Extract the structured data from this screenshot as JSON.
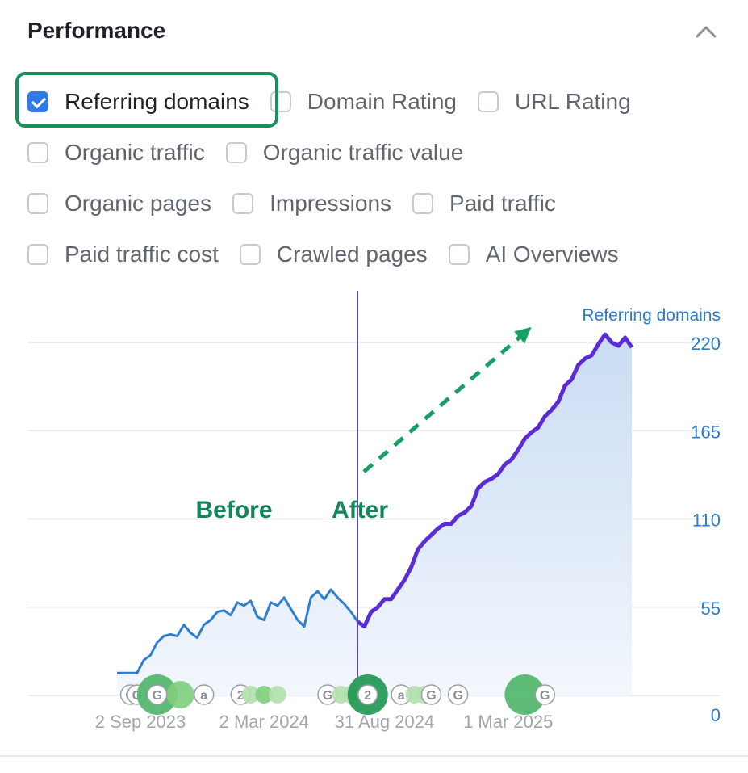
{
  "panel": {
    "title": "Performance"
  },
  "metrics": {
    "rows": [
      [
        {
          "label": "Referring domains",
          "checked": true
        },
        {
          "label": "Domain Rating",
          "checked": false
        },
        {
          "label": "URL Rating",
          "checked": false
        }
      ],
      [
        {
          "label": "Organic traffic",
          "checked": false
        },
        {
          "label": "Organic traffic value",
          "checked": false
        }
      ],
      [
        {
          "label": "Organic pages",
          "checked": false
        },
        {
          "label": "Impressions",
          "checked": false
        },
        {
          "label": "Paid traffic",
          "checked": false
        }
      ],
      [
        {
          "label": "Paid traffic cost",
          "checked": false
        },
        {
          "label": "Crawled pages",
          "checked": false
        },
        {
          "label": "AI Overviews",
          "checked": false
        }
      ]
    ]
  },
  "chart_data": {
    "type": "area",
    "series": [
      {
        "name": "Referring domains",
        "before": [
          [
            0,
            14
          ],
          [
            2,
            14
          ],
          [
            4,
            14
          ],
          [
            6,
            14
          ],
          [
            8,
            22
          ],
          [
            10,
            25
          ],
          [
            12,
            33
          ],
          [
            14,
            37
          ],
          [
            16,
            38
          ],
          [
            18,
            37
          ],
          [
            20,
            44
          ],
          [
            22,
            39
          ],
          [
            24,
            36
          ],
          [
            26,
            44
          ],
          [
            28,
            47
          ],
          [
            30,
            52
          ],
          [
            32,
            53
          ],
          [
            34,
            50
          ],
          [
            36,
            58
          ],
          [
            38,
            56
          ],
          [
            40,
            59
          ],
          [
            42,
            49
          ],
          [
            44,
            47
          ],
          [
            46,
            58
          ],
          [
            48,
            56
          ],
          [
            50,
            61
          ],
          [
            52,
            54
          ],
          [
            54,
            47
          ],
          [
            56,
            43
          ],
          [
            58,
            61
          ],
          [
            60,
            65
          ],
          [
            62,
            60
          ],
          [
            64,
            66
          ],
          [
            66,
            61
          ],
          [
            68,
            57
          ],
          [
            70,
            52
          ],
          [
            72,
            46
          ]
        ],
        "after": [
          [
            72,
            46
          ],
          [
            74,
            43
          ],
          [
            76,
            52
          ],
          [
            78,
            55
          ],
          [
            80,
            60
          ],
          [
            82,
            60
          ],
          [
            84,
            66
          ],
          [
            86,
            72
          ],
          [
            88,
            80
          ],
          [
            90,
            91
          ],
          [
            92,
            96
          ],
          [
            94,
            100
          ],
          [
            96,
            104
          ],
          [
            98,
            107
          ],
          [
            100,
            107
          ],
          [
            102,
            112
          ],
          [
            104,
            114
          ],
          [
            106,
            118
          ],
          [
            108,
            129
          ],
          [
            110,
            133
          ],
          [
            112,
            135
          ],
          [
            114,
            138
          ],
          [
            116,
            144
          ],
          [
            118,
            147
          ],
          [
            120,
            153
          ],
          [
            122,
            160
          ],
          [
            124,
            164
          ],
          [
            126,
            167
          ],
          [
            128,
            174
          ],
          [
            130,
            178
          ],
          [
            132,
            183
          ],
          [
            134,
            193
          ],
          [
            136,
            197
          ],
          [
            138,
            206
          ],
          [
            140,
            210
          ],
          [
            142,
            212
          ],
          [
            144,
            219
          ],
          [
            146,
            225
          ],
          [
            148,
            220
          ],
          [
            150,
            218
          ],
          [
            152,
            223
          ],
          [
            154,
            217
          ]
        ]
      }
    ],
    "x_ticks": [
      {
        "x": 7,
        "label": "2 Sep 2023"
      },
      {
        "x": 44,
        "label": "2 Mar 2024"
      },
      {
        "x": 80,
        "label": "31 Aug 2024"
      },
      {
        "x": 117,
        "label": "1 Mar 2025"
      }
    ],
    "ylabel": "Referring domains",
    "ylim": [
      0,
      220
    ],
    "yticks": [
      0,
      55,
      110,
      165,
      220
    ],
    "divider_x": 72,
    "annotations": {
      "before": "Before",
      "after": "After"
    },
    "events": [
      {
        "x": 4,
        "kind": "g",
        "text": "G"
      },
      {
        "x": 6,
        "kind": "g",
        "text": "G"
      },
      {
        "x": 12,
        "kind": "dot",
        "size": "large",
        "tone": "mid"
      },
      {
        "x": 12,
        "kind": "g",
        "text": "G"
      },
      {
        "x": 19,
        "kind": "dot",
        "size": "medium",
        "tone": "light"
      },
      {
        "x": 26,
        "kind": "a",
        "text": "a"
      },
      {
        "x": 37,
        "kind": "n",
        "text": "2"
      },
      {
        "x": 40,
        "kind": "dot",
        "size": "small",
        "tone": "pale"
      },
      {
        "x": 44,
        "kind": "dot",
        "size": "small",
        "tone": "light"
      },
      {
        "x": 48,
        "kind": "dot",
        "size": "small",
        "tone": "pale"
      },
      {
        "x": 63,
        "kind": "g",
        "text": "G"
      },
      {
        "x": 67,
        "kind": "dot",
        "size": "small",
        "tone": "pale"
      },
      {
        "x": 70,
        "kind": "dot",
        "size": "small",
        "tone": "pale"
      },
      {
        "x": 75,
        "kind": "dot",
        "size": "large",
        "tone": "dark"
      },
      {
        "x": 75,
        "kind": "n",
        "text": "2"
      },
      {
        "x": 85,
        "kind": "a",
        "text": "a"
      },
      {
        "x": 89,
        "kind": "dot",
        "size": "small",
        "tone": "pale"
      },
      {
        "x": 92,
        "kind": "dot",
        "size": "small",
        "tone": "pale"
      },
      {
        "x": 94,
        "kind": "g",
        "text": "G"
      },
      {
        "x": 102,
        "kind": "g",
        "text": "G"
      },
      {
        "x": 122,
        "kind": "dot",
        "size": "large",
        "tone": "mid"
      },
      {
        "x": 128,
        "kind": "g",
        "text": "G"
      }
    ],
    "colors": {
      "before_line": "#2f7fd0",
      "after_line": "#5b2bd6",
      "area_top": "#c9dcf3",
      "area_bottom": "#f3f7fd",
      "divider": "#6a3fd0",
      "annotation": "#14875a",
      "arrow": "#16a065",
      "axis_label": "#2f7ac9",
      "tick_label": "#a1a6ad",
      "grid": "#e4e6ea"
    }
  }
}
